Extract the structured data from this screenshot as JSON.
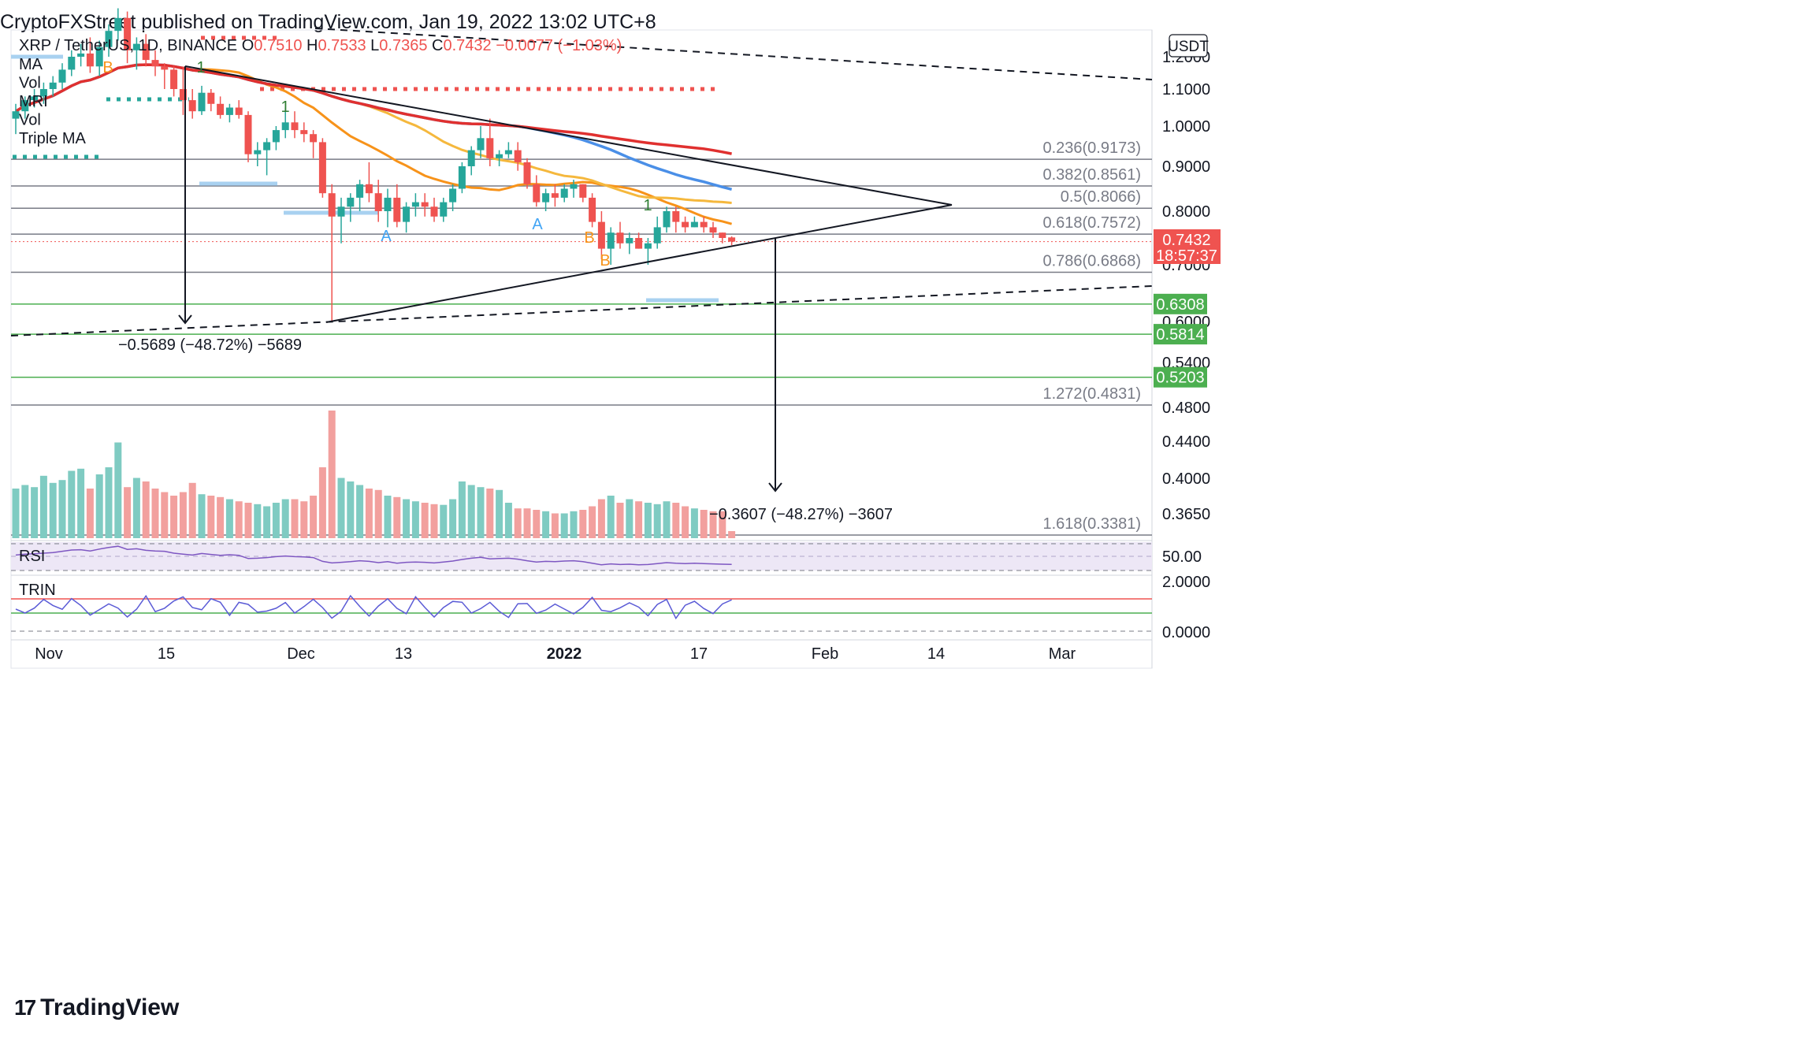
{
  "header": {
    "publisher_line": "CryptoFXStreet published on TradingView.com, Jan 19, 2022 13:02 UTC+8"
  },
  "brand": {
    "name": "TradingView",
    "logo_icon": "tradingview-logo-icon"
  },
  "legend": {
    "symbol": "XRP / TetherUS, 1D, BINANCE",
    "open_label": "O",
    "open": "0.7510",
    "high_label": "H",
    "high": "0.7533",
    "low_label": "L",
    "low": "0.7365",
    "close_label": "C",
    "close": "0.7432",
    "change": "−0.0077 (−1.03%)",
    "indicators": [
      "MA",
      "Vol",
      "MRI",
      "Vol",
      "Triple MA"
    ]
  },
  "colors": {
    "up": "#26a69a",
    "down": "#ef5350",
    "ma_orange": "#f7931a",
    "ma_yellow": "#f5b83d",
    "ma_blue": "#4a8fe7",
    "ma_red": "#e0302f",
    "rsi_line": "#7e57c2",
    "trin_line": "#5b5bd6",
    "support_green": "#4caf50",
    "price_label_red": "#ef5350"
  },
  "chart_data": {
    "type": "candlestick",
    "currency_badge": "USDT",
    "x_ticks": [
      "Nov",
      "15",
      "Dec",
      "13",
      "2022",
      "17",
      "Feb",
      "14",
      "Mar"
    ],
    "y_ticks": [
      "1.2000",
      "1.1000",
      "1.0000",
      "0.9000",
      "0.8000",
      "0.7000",
      "0.6000",
      "0.5400",
      "0.4800",
      "0.4400",
      "0.4000",
      "0.3650"
    ],
    "price_label": {
      "value": "0.7432",
      "countdown": "18:57:37"
    },
    "support_levels": [
      "0.6308",
      "0.5814",
      "0.5203"
    ],
    "fib_levels": [
      {
        "label": "0.236(0.9173)",
        "value": 0.9173
      },
      {
        "label": "0.382(0.8561)",
        "value": 0.8561
      },
      {
        "label": "0.5(0.8066)",
        "value": 0.8066
      },
      {
        "label": "0.618(0.7572)",
        "value": 0.7572
      },
      {
        "label": "0.786(0.6868)",
        "value": 0.6868
      },
      {
        "label": "1.272(0.4831)",
        "value": 0.4831
      },
      {
        "label": "1.618(0.3381)",
        "value": 0.3381
      }
    ],
    "measure_labels": [
      "−0.5689 (−48.72%) −5689",
      "−0.3607 (−48.27%) −3607"
    ],
    "markers": [
      "B",
      "1",
      "1",
      "A",
      "A",
      "B",
      "B",
      "1"
    ],
    "candles": [
      [
        1.02,
        1.06,
        0.98,
        1.04
      ],
      [
        1.04,
        1.08,
        1.02,
        1.07
      ],
      [
        1.07,
        1.1,
        1.05,
        1.08
      ],
      [
        1.08,
        1.12,
        1.06,
        1.1
      ],
      [
        1.1,
        1.14,
        1.08,
        1.12
      ],
      [
        1.12,
        1.18,
        1.1,
        1.16
      ],
      [
        1.16,
        1.22,
        1.14,
        1.2
      ],
      [
        1.2,
        1.24,
        1.17,
        1.21
      ],
      [
        1.21,
        1.26,
        1.15,
        1.17
      ],
      [
        1.17,
        1.25,
        1.14,
        1.23
      ],
      [
        1.23,
        1.3,
        1.2,
        1.28
      ],
      [
        1.28,
        1.35,
        1.25,
        1.32
      ],
      [
        1.32,
        1.34,
        1.18,
        1.22
      ],
      [
        1.22,
        1.26,
        1.16,
        1.24
      ],
      [
        1.24,
        1.27,
        1.17,
        1.19
      ],
      [
        1.19,
        1.22,
        1.14,
        1.17
      ],
      [
        1.17,
        1.18,
        1.1,
        1.16
      ],
      [
        1.16,
        1.17,
        1.08,
        1.1
      ],
      [
        1.1,
        1.17,
        1.03,
        1.07
      ],
      [
        1.07,
        1.1,
        1.02,
        1.04
      ],
      [
        1.04,
        1.11,
        1.03,
        1.09
      ],
      [
        1.09,
        1.1,
        1.04,
        1.06
      ],
      [
        1.06,
        1.08,
        1.02,
        1.03
      ],
      [
        1.03,
        1.06,
        1.01,
        1.05
      ],
      [
        1.05,
        1.07,
        1.02,
        1.03
      ],
      [
        1.03,
        1.04,
        0.91,
        0.93
      ],
      [
        0.93,
        0.96,
        0.9,
        0.94
      ],
      [
        0.94,
        0.97,
        0.88,
        0.96
      ],
      [
        0.96,
        1.0,
        0.94,
        0.99
      ],
      [
        0.99,
        1.05,
        0.97,
        1.01
      ],
      [
        1.01,
        1.04,
        0.97,
        0.99
      ],
      [
        0.99,
        1.01,
        0.96,
        0.98
      ],
      [
        0.98,
        0.99,
        0.92,
        0.96
      ],
      [
        0.96,
        0.97,
        0.83,
        0.84
      ],
      [
        0.84,
        0.86,
        0.6,
        0.79
      ],
      [
        0.79,
        0.83,
        0.74,
        0.81
      ],
      [
        0.81,
        0.84,
        0.78,
        0.83
      ],
      [
        0.83,
        0.87,
        0.8,
        0.86
      ],
      [
        0.86,
        0.91,
        0.82,
        0.84
      ],
      [
        0.84,
        0.87,
        0.78,
        0.8
      ],
      [
        0.8,
        0.85,
        0.77,
        0.83
      ],
      [
        0.83,
        0.86,
        0.77,
        0.78
      ],
      [
        0.78,
        0.82,
        0.76,
        0.81
      ],
      [
        0.81,
        0.84,
        0.79,
        0.82
      ],
      [
        0.82,
        0.84,
        0.79,
        0.81
      ],
      [
        0.81,
        0.83,
        0.78,
        0.79
      ],
      [
        0.79,
        0.83,
        0.78,
        0.82
      ],
      [
        0.82,
        0.86,
        0.8,
        0.85
      ],
      [
        0.85,
        0.91,
        0.84,
        0.9
      ],
      [
        0.9,
        0.95,
        0.88,
        0.94
      ],
      [
        0.94,
        1.0,
        0.92,
        0.97
      ],
      [
        0.97,
        1.02,
        0.9,
        0.92
      ],
      [
        0.92,
        0.94,
        0.9,
        0.93
      ],
      [
        0.93,
        0.96,
        0.92,
        0.94
      ],
      [
        0.94,
        0.96,
        0.89,
        0.91
      ],
      [
        0.91,
        0.92,
        0.85,
        0.86
      ],
      [
        0.86,
        0.88,
        0.81,
        0.82
      ],
      [
        0.82,
        0.85,
        0.8,
        0.84
      ],
      [
        0.84,
        0.86,
        0.81,
        0.83
      ],
      [
        0.83,
        0.86,
        0.82,
        0.85
      ],
      [
        0.85,
        0.87,
        0.83,
        0.86
      ],
      [
        0.86,
        0.86,
        0.82,
        0.83
      ],
      [
        0.83,
        0.84,
        0.77,
        0.78
      ],
      [
        0.78,
        0.8,
        0.71,
        0.73
      ],
      [
        0.73,
        0.77,
        0.7,
        0.76
      ],
      [
        0.76,
        0.78,
        0.73,
        0.74
      ],
      [
        0.74,
        0.76,
        0.72,
        0.75
      ],
      [
        0.75,
        0.76,
        0.73,
        0.73
      ],
      [
        0.73,
        0.75,
        0.7,
        0.74
      ],
      [
        0.74,
        0.79,
        0.73,
        0.77
      ],
      [
        0.77,
        0.81,
        0.76,
        0.8
      ],
      [
        0.8,
        0.81,
        0.76,
        0.78
      ],
      [
        0.78,
        0.79,
        0.76,
        0.77
      ],
      [
        0.77,
        0.79,
        0.77,
        0.78
      ],
      [
        0.78,
        0.79,
        0.76,
        0.77
      ],
      [
        0.77,
        0.78,
        0.75,
        0.76
      ],
      [
        0.76,
        0.76,
        0.74,
        0.75
      ],
      [
        0.751,
        0.753,
        0.7365,
        0.7432
      ]
    ],
    "volume": [
      70,
      75,
      72,
      88,
      78,
      82,
      95,
      98,
      70,
      90,
      100,
      135,
      72,
      85,
      80,
      70,
      65,
      60,
      65,
      78,
      62,
      60,
      58,
      55,
      52,
      50,
      48,
      45,
      50,
      55,
      55,
      52,
      60,
      100,
      180,
      85,
      80,
      75,
      70,
      68,
      60,
      58,
      55,
      52,
      50,
      48,
      47,
      55,
      80,
      75,
      72,
      70,
      68,
      50,
      42,
      42,
      40,
      38,
      35,
      35,
      38,
      40,
      45,
      55,
      60,
      50,
      55,
      52,
      50,
      48,
      52,
      50,
      45,
      42,
      40,
      38,
      38,
      10
    ],
    "rsi_ticks": [
      "50.00"
    ],
    "trin_ticks": [
      "2.0000",
      "0.0000"
    ],
    "panes": [
      "RSI",
      "TRIN"
    ]
  }
}
